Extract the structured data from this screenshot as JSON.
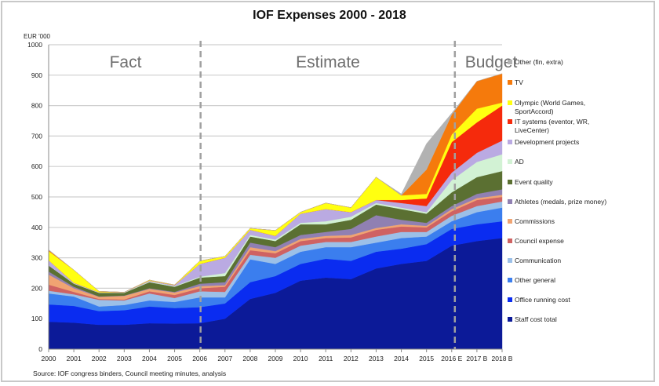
{
  "chart_data": {
    "type": "area",
    "stacked": true,
    "title": "IOF Expenses 2000 - 2018",
    "ylabel": "EUR '000",
    "xlabel": "",
    "ylim": [
      0,
      1000
    ],
    "yticks": [
      0,
      100,
      200,
      300,
      400,
      500,
      600,
      700,
      800,
      900,
      1000
    ],
    "grid": true,
    "legend_placement": "right",
    "categories": [
      "2000",
      "2001",
      "2002",
      "2003",
      "2004",
      "2005",
      "2006",
      "2007",
      "2008",
      "2009",
      "2010",
      "2011",
      "2012",
      "2013",
      "2014",
      "2015",
      "2016 E",
      "2017 B",
      "2018 B"
    ],
    "phases": [
      {
        "label": "Fact",
        "from": "2000",
        "to": "2006"
      },
      {
        "label": "Estimate",
        "from": "2006",
        "to": "2016 E"
      },
      {
        "label": "Budget",
        "from": "2016 E",
        "to": "2018 B"
      }
    ],
    "phase_dividers": [
      "2006",
      "2016 E"
    ],
    "source": "Source: IOF congress binders, Council meeting minutes, analysis",
    "series": [
      {
        "name": "Staff cost total",
        "color": "#0c1a98",
        "values": [
          90,
          87,
          80,
          80,
          85,
          84,
          85,
          100,
          165,
          185,
          225,
          235,
          230,
          265,
          280,
          290,
          340,
          355,
          365
        ]
      },
      {
        "name": "Office running cost",
        "color": "#0a2cf0",
        "values": [
          57,
          55,
          45,
          48,
          55,
          51,
          53,
          50,
          55,
          55,
          55,
          62,
          60,
          55,
          50,
          55,
          55,
          55,
          55
        ]
      },
      {
        "name": "Other general",
        "color": "#3b7eee",
        "values": [
          36,
          31,
          15,
          17,
          20,
          20,
          32,
          20,
          75,
          40,
          40,
          38,
          45,
          30,
          35,
          25,
          25,
          40,
          45
        ]
      },
      {
        "name": "Communication",
        "color": "#9cc0e8",
        "values": [
          9,
          7,
          22,
          15,
          23,
          13,
          20,
          18,
          15,
          20,
          20,
          17,
          17,
          20,
          20,
          15,
          18,
          20,
          20
        ]
      },
      {
        "name": "Council expense",
        "color": "#cf6262",
        "values": [
          20,
          8,
          3,
          3,
          7,
          10,
          10,
          17,
          15,
          15,
          15,
          13,
          15,
          22,
          18,
          15,
          15,
          20,
          15
        ]
      },
      {
        "name": "Commissions",
        "color": "#f0a472",
        "values": [
          33,
          12,
          7,
          12,
          8,
          8,
          7,
          5,
          10,
          7,
          7,
          7,
          8,
          6,
          7,
          5,
          7,
          6,
          7
        ]
      },
      {
        "name": "Athletes (medals, prize money)",
        "color": "#9080b2",
        "values": [
          10,
          5,
          1,
          1,
          2,
          2,
          8,
          10,
          15,
          13,
          13,
          13,
          20,
          42,
          15,
          10,
          10,
          14,
          18
        ]
      },
      {
        "name": "Event quality",
        "color": "#5b7032",
        "values": [
          20,
          10,
          12,
          9,
          20,
          17,
          20,
          20,
          20,
          20,
          35,
          25,
          30,
          35,
          35,
          30,
          45,
          55,
          60
        ]
      },
      {
        "name": "AD",
        "color": "#d2f2d4",
        "values": [
          0,
          1,
          1,
          1,
          2,
          2,
          3,
          10,
          5,
          5,
          5,
          10,
          10,
          5,
          5,
          5,
          40,
          50,
          55
        ]
      },
      {
        "name": "Development projects",
        "color": "#baaae2",
        "values": [
          17,
          2,
          1,
          1,
          3,
          3,
          42,
          50,
          17,
          12,
          30,
          40,
          15,
          10,
          15,
          20,
          25,
          30,
          45
        ]
      },
      {
        "name": "IT systems (eventor, WR, LiveCenter)",
        "color": "#f52a0c",
        "values": [
          0,
          0,
          0,
          0,
          0,
          0,
          0,
          0,
          0,
          0,
          0,
          0,
          0,
          0,
          10,
          25,
          100,
          100,
          115
        ]
      },
      {
        "name": "Olympic (World Games, SportAccord)",
        "color": "#ffff10",
        "values": [
          30,
          42,
          3,
          0,
          2,
          1,
          10,
          5,
          5,
          18,
          5,
          20,
          15,
          75,
          15,
          15,
          25,
          45,
          10
        ]
      },
      {
        "name": "TV",
        "color": "#f57a0c",
        "values": [
          3,
          0,
          0,
          0,
          0,
          0,
          0,
          0,
          0,
          0,
          0,
          0,
          0,
          0,
          0,
          80,
          65,
          90,
          95
        ]
      },
      {
        "name": "Other (fin, extra)",
        "color": "#b2b2b2",
        "values": [
          2,
          0,
          0,
          0,
          0,
          0,
          0,
          0,
          0,
          0,
          0,
          0,
          0,
          0,
          5,
          85,
          5,
          0,
          0
        ]
      }
    ]
  }
}
